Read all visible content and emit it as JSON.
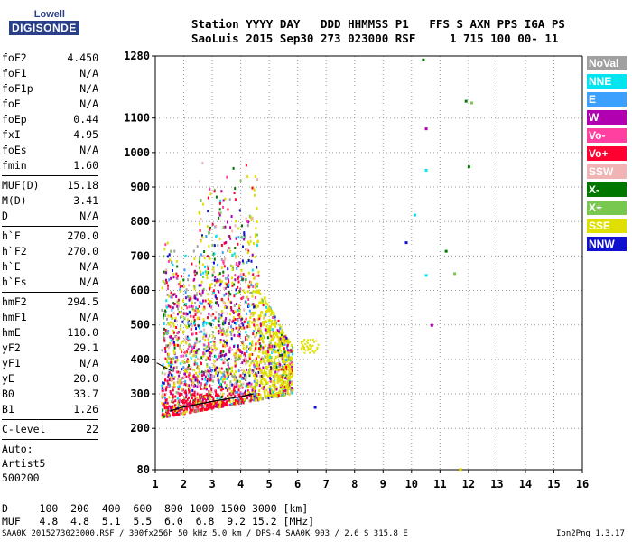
{
  "logo": {
    "top": "Lowell",
    "bottom": "DIGISONDE"
  },
  "header": {
    "line1": "Station YYYY DAY   DDD HHMMSS P1   FFS S AXN PPS IGA PS",
    "line2": "SaoLuis 2015 Sep30 273 023000 RSF     1 715 100 00- 11"
  },
  "params": [
    {
      "label": "foF2",
      "value": "4.450"
    },
    {
      "label": "foF1",
      "value": "N/A"
    },
    {
      "label": "foF1p",
      "value": "N/A"
    },
    {
      "label": "foE",
      "value": "N/A"
    },
    {
      "label": "foEp",
      "value": "0.44"
    },
    {
      "label": "fxI",
      "value": "4.95"
    },
    {
      "label": "foEs",
      "value": "N/A"
    },
    {
      "label": "fmin",
      "value": "1.60"
    },
    {
      "label": "MUF(D)",
      "value": "15.18",
      "divider": true
    },
    {
      "label": "M(D)",
      "value": "3.41"
    },
    {
      "label": "D",
      "value": "N/A"
    },
    {
      "label": "h`F",
      "value": "270.0",
      "divider": true
    },
    {
      "label": "h`F2",
      "value": "270.0"
    },
    {
      "label": "h`E",
      "value": "N/A"
    },
    {
      "label": "h`Es",
      "value": "N/A"
    },
    {
      "label": "hmF2",
      "value": "294.5",
      "divider": true
    },
    {
      "label": "hmF1",
      "value": "N/A"
    },
    {
      "label": "hmE",
      "value": "110.0"
    },
    {
      "label": "yF2",
      "value": "29.1"
    },
    {
      "label": "yF1",
      "value": "N/A"
    },
    {
      "label": "yE",
      "value": "20.0"
    },
    {
      "label": "B0",
      "value": "33.7"
    },
    {
      "label": "B1",
      "value": "1.26"
    },
    {
      "label": "C-level",
      "value": "22",
      "divider": true
    }
  ],
  "auto_lines": [
    "Auto:",
    "Artist5",
    "500200"
  ],
  "legend": [
    {
      "label": "NoVal",
      "color": "#a0a0a0"
    },
    {
      "label": "NNE",
      "color": "#00e5f0"
    },
    {
      "label": "E",
      "color": "#3ca0ff"
    },
    {
      "label": "W",
      "color": "#b000b0"
    },
    {
      "label": "Vo-",
      "color": "#ff40a0"
    },
    {
      "label": "Vo+",
      "color": "#ff0030"
    },
    {
      "label": "SSW",
      "color": "#f0b4b4"
    },
    {
      "label": "X-",
      "color": "#007800"
    },
    {
      "label": "X+",
      "color": "#78c850"
    },
    {
      "label": "SSE",
      "color": "#e0e000"
    },
    {
      "label": "NNW",
      "color": "#1010d0"
    }
  ],
  "bottom": {
    "line1": "D     100  200  400  600  800 1000 1500 3000 [km]",
    "line2": "MUF   4.8  4.8  5.1  5.5  6.0  6.8  9.2 15.2 [MHz]"
  },
  "footer": "SAA0K_2015273023000.RSF / 300fx256h 50 kHz 5.0 km / DPS-4 SAA0K 903 / 2.6 S 315.8 E",
  "version": "Ion2Png 1.3.17",
  "chart_data": {
    "type": "scatter",
    "xlabel": "",
    "ylabel": "",
    "xlim": [
      1,
      16
    ],
    "ylim": [
      80,
      1280
    ],
    "x_ticks": [
      1,
      2,
      3,
      4,
      5,
      6,
      7,
      8,
      9,
      10,
      11,
      12,
      13,
      14,
      15,
      16
    ],
    "y_ticks": [
      80,
      200,
      300,
      400,
      500,
      600,
      700,
      800,
      900,
      1000,
      1100,
      1280
    ],
    "grid": true,
    "trace": {
      "name": "",
      "x": [
        1.5,
        2.0,
        2.5,
        3.0,
        3.5,
        4.0,
        4.45
      ],
      "y": [
        250,
        262,
        270,
        278,
        285,
        292,
        300
      ]
    },
    "isolated_echoes": [
      {
        "x": 10.4,
        "y": 1270,
        "dir": "X-"
      },
      {
        "x": 11.9,
        "y": 1150,
        "dir": "X-"
      },
      {
        "x": 12.1,
        "y": 1145,
        "dir": "X+"
      },
      {
        "x": 10.5,
        "y": 1070,
        "dir": "W"
      },
      {
        "x": 12.0,
        "y": 960,
        "dir": "X-"
      },
      {
        "x": 10.5,
        "y": 950,
        "dir": "NNE"
      },
      {
        "x": 10.1,
        "y": 820,
        "dir": "NNE"
      },
      {
        "x": 9.8,
        "y": 740,
        "dir": "NNW"
      },
      {
        "x": 11.2,
        "y": 715,
        "dir": "X-"
      },
      {
        "x": 10.5,
        "y": 645,
        "dir": "NNE"
      },
      {
        "x": 11.5,
        "y": 650,
        "dir": "X+"
      },
      {
        "x": 10.7,
        "y": 500,
        "dir": "W"
      },
      {
        "x": 6.6,
        "y": 262,
        "dir": "NNW"
      },
      {
        "x": 11.7,
        "y": 82,
        "dir": "SSE"
      }
    ]
  }
}
